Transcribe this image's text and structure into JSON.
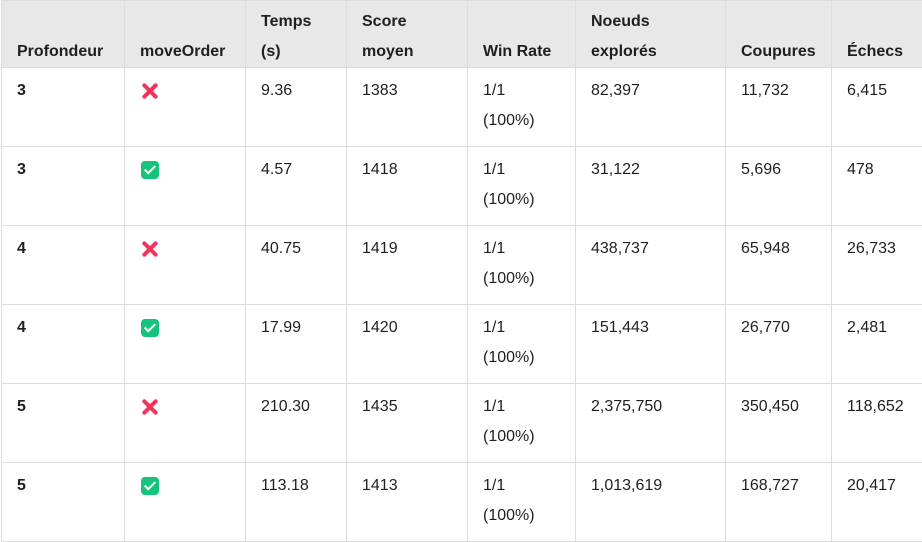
{
  "table": {
    "headers": {
      "profondeur": "Profondeur",
      "move_order": "moveOrder",
      "temps_line1": "Temps",
      "temps_line2": "(s)",
      "score_line1": "Score",
      "score_line2": "moyen",
      "win_rate": "Win Rate",
      "noeuds_line1": "Noeuds",
      "noeuds_line2": "explorés",
      "coupures": "Coupures",
      "echecs": "Échecs"
    },
    "rows": [
      {
        "profondeur": "3",
        "move_order_icon": "cross-mark-icon",
        "temps": "9.36",
        "score": "1383",
        "win_line1": "1/1",
        "win_line2": "(100%)",
        "noeuds": "82,397",
        "coupures": "11,732",
        "echecs": "6,415"
      },
      {
        "profondeur": "3",
        "move_order_icon": "check-mark-icon",
        "temps": "4.57",
        "score": "1418",
        "win_line1": "1/1",
        "win_line2": "(100%)",
        "noeuds": "31,122",
        "coupures": "5,696",
        "echecs": "478"
      },
      {
        "profondeur": "4",
        "move_order_icon": "cross-mark-icon",
        "temps": "40.75",
        "score": "1419",
        "win_line1": "1/1",
        "win_line2": "(100%)",
        "noeuds": "438,737",
        "coupures": "65,948",
        "echecs": "26,733"
      },
      {
        "profondeur": "4",
        "move_order_icon": "check-mark-icon",
        "temps": "17.99",
        "score": "1420",
        "win_line1": "1/1",
        "win_line2": "(100%)",
        "noeuds": "151,443",
        "coupures": "26,770",
        "echecs": "2,481"
      },
      {
        "profondeur": "5",
        "move_order_icon": "cross-mark-icon",
        "temps": "210.30",
        "score": "1435",
        "win_line1": "1/1",
        "win_line2": "(100%)",
        "noeuds": "2,375,750",
        "coupures": "350,450",
        "echecs": "118,652"
      },
      {
        "profondeur": "5",
        "move_order_icon": "check-mark-icon",
        "temps": "113.18",
        "score": "1413",
        "win_line1": "1/1",
        "win_line2": "(100%)",
        "noeuds": "1,013,619",
        "coupures": "168,727",
        "echecs": "20,417"
      }
    ]
  },
  "colors": {
    "header_background": "#e8e8e8",
    "cross_icon": "#f2335b",
    "check_icon": "#14c47a",
    "border": "#dcdcdc"
  }
}
